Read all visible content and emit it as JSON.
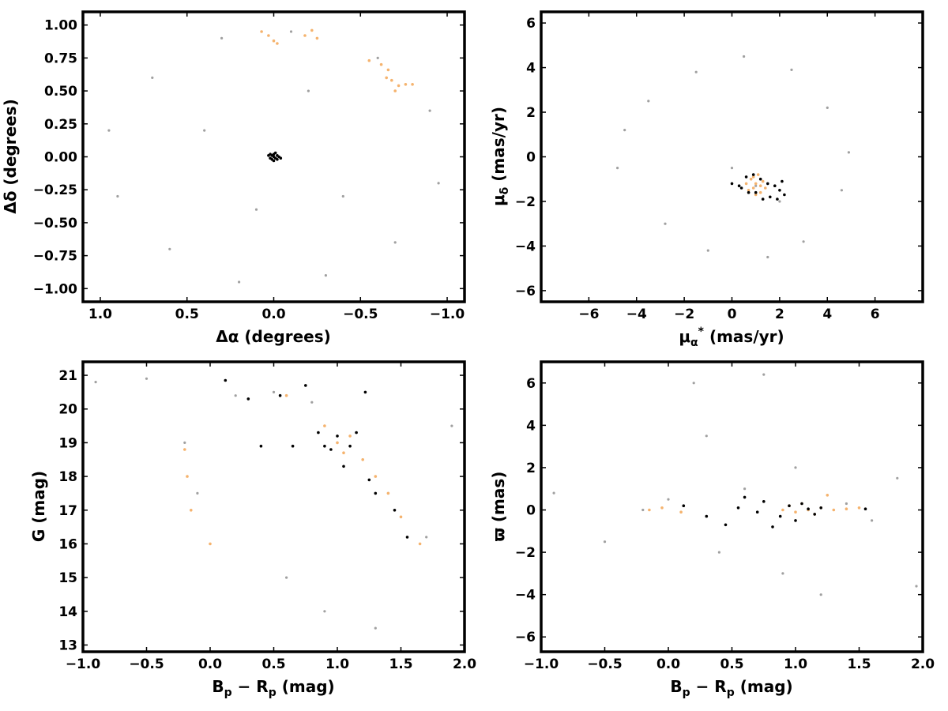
{
  "colors": {
    "field": "#a0a0a0",
    "candidates": "#f5b36e",
    "members": "#000000"
  },
  "chart_data": [
    {
      "id": "sky",
      "type": "scatter",
      "xlabel": "Δα (degrees)",
      "ylabel": "Δδ (degrees)",
      "xlim": [
        1.1,
        -1.1
      ],
      "ylim": [
        -1.1,
        1.1
      ],
      "x_ticks": [
        1.0,
        0.5,
        0.0,
        -0.5,
        -1.0
      ],
      "x_tick_labels": [
        "1.0",
        "0.5",
        "0.0",
        "−0.5",
        "−1.0"
      ],
      "y_ticks": [
        1.0,
        0.75,
        0.5,
        0.25,
        0.0,
        -0.25,
        -0.5,
        -0.75,
        -1.0
      ],
      "y_tick_labels": [
        "1.00",
        "0.75",
        "0.50",
        "0.25",
        "0.00",
        "−0.25",
        "−0.50",
        "−0.75",
        "−1.00"
      ],
      "grid": false,
      "series": [
        {
          "values": [
            [
              0.95,
              0.2
            ],
            [
              0.9,
              -0.3
            ],
            [
              0.7,
              0.6
            ],
            [
              0.6,
              -0.7
            ],
            [
              0.3,
              0.9
            ],
            [
              0.2,
              -0.95
            ],
            [
              -0.1,
              0.95
            ],
            [
              -0.3,
              -0.9
            ],
            [
              -0.6,
              0.75
            ],
            [
              -0.7,
              -0.65
            ],
            [
              -0.9,
              0.35
            ],
            [
              -0.95,
              -0.2
            ],
            [
              0.4,
              0.2
            ],
            [
              -0.4,
              -0.3
            ],
            [
              0.1,
              -0.4
            ],
            [
              -0.2,
              0.5
            ]
          ]
        },
        {
          "values": [
            [
              0.0,
              0.88
            ],
            [
              0.03,
              0.92
            ],
            [
              -0.02,
              0.86
            ],
            [
              0.07,
              0.95
            ],
            [
              -0.18,
              0.92
            ],
            [
              -0.22,
              0.96
            ],
            [
              -0.25,
              0.9
            ],
            [
              -0.55,
              0.73
            ],
            [
              -0.62,
              0.7
            ],
            [
              -0.66,
              0.66
            ],
            [
              -0.68,
              0.58
            ],
            [
              -0.72,
              0.54
            ],
            [
              -0.76,
              0.55
            ],
            [
              -0.8,
              0.55
            ],
            [
              -0.7,
              0.5
            ],
            [
              -0.65,
              0.6
            ]
          ]
        },
        {
          "values": [
            [
              0.0,
              0.0
            ],
            [
              0.01,
              0.01
            ],
            [
              -0.01,
              -0.01
            ],
            [
              0.02,
              -0.01
            ],
            [
              -0.02,
              0.01
            ],
            [
              0.0,
              0.02
            ],
            [
              0.01,
              -0.02
            ],
            [
              -0.03,
              0.0
            ],
            [
              0.03,
              0.01
            ],
            [
              0.0,
              -0.03
            ],
            [
              -0.01,
              0.03
            ],
            [
              0.02,
              0.02
            ],
            [
              -0.02,
              -0.02
            ],
            [
              -0.04,
              -0.01
            ]
          ]
        }
      ]
    },
    {
      "id": "pm",
      "type": "scatter",
      "xlabel": "μα* (mas/yr)",
      "ylabel": "μδ (mas/yr)",
      "xlim": [
        -8,
        8
      ],
      "ylim": [
        -6.5,
        6.5
      ],
      "x_ticks": [
        -6,
        -4,
        -2,
        0,
        2,
        4,
        6
      ],
      "x_tick_labels": [
        "−6",
        "−4",
        "−2",
        "0",
        "2",
        "4",
        "6"
      ],
      "y_ticks": [
        6,
        4,
        2,
        0,
        -2,
        -4,
        -6
      ],
      "y_tick_labels": [
        "6",
        "4",
        "2",
        "0",
        "−2",
        "−4",
        "−6"
      ],
      "grid": false,
      "series": [
        {
          "values": [
            [
              -4.8,
              -0.5
            ],
            [
              -4.5,
              1.2
            ],
            [
              -3.5,
              2.5
            ],
            [
              -2.8,
              -3.0
            ],
            [
              -1.5,
              3.8
            ],
            [
              -1.0,
              -4.2
            ],
            [
              0.5,
              4.5
            ],
            [
              1.5,
              -4.5
            ],
            [
              2.5,
              3.9
            ],
            [
              3.0,
              -3.8
            ],
            [
              4.0,
              2.2
            ],
            [
              4.6,
              -1.5
            ],
            [
              4.9,
              0.2
            ],
            [
              1.0,
              -1.3
            ],
            [
              0.0,
              -0.5
            ],
            [
              2.0,
              -2.0
            ]
          ]
        },
        {
          "values": [
            [
              0.6,
              -1.2
            ],
            [
              0.8,
              -1.0
            ],
            [
              0.9,
              -1.4
            ],
            [
              1.0,
              -1.2
            ],
            [
              1.1,
              -0.8
            ],
            [
              1.2,
              -1.6
            ],
            [
              1.3,
              -1.1
            ],
            [
              0.7,
              -1.5
            ],
            [
              1.0,
              -1.7
            ],
            [
              1.2,
              -1.3
            ],
            [
              0.9,
              -0.9
            ],
            [
              1.4,
              -1.4
            ]
          ]
        },
        {
          "values": [
            [
              0.0,
              -1.2
            ],
            [
              0.3,
              -1.3
            ],
            [
              0.6,
              -0.9
            ],
            [
              0.9,
              -0.8
            ],
            [
              1.2,
              -1.0
            ],
            [
              1.5,
              -1.2
            ],
            [
              1.8,
              -1.3
            ],
            [
              2.0,
              -1.5
            ],
            [
              2.2,
              -1.7
            ],
            [
              1.9,
              -1.9
            ],
            [
              1.6,
              -1.8
            ],
            [
              1.3,
              -1.9
            ],
            [
              1.0,
              -1.6
            ],
            [
              0.7,
              -1.6
            ],
            [
              0.4,
              -1.4
            ],
            [
              2.1,
              -1.1
            ]
          ]
        }
      ]
    },
    {
      "id": "cmd",
      "type": "scatter",
      "xlabel": "Bp − Rp (mag)",
      "ylabel": "G (mag)",
      "xlim": [
        -1.0,
        2.0
      ],
      "ylim": [
        12.8,
        21.4
      ],
      "x_ticks": [
        -1.0,
        -0.5,
        0.0,
        0.5,
        1.0,
        1.5,
        2.0
      ],
      "x_tick_labels": [
        "−1.0",
        "−0.5",
        "0.0",
        "0.5",
        "1.0",
        "1.5",
        "2.0"
      ],
      "y_ticks": [
        21,
        20,
        19,
        18,
        17,
        16,
        15,
        14,
        13
      ],
      "y_tick_labels": [
        "21",
        "20",
        "19",
        "18",
        "17",
        "16",
        "15",
        "14",
        "13"
      ],
      "grid": false,
      "series": [
        {
          "values": [
            [
              -0.9,
              20.8
            ],
            [
              -0.5,
              20.9
            ],
            [
              -0.2,
              19.0
            ],
            [
              -0.1,
              17.5
            ],
            [
              0.2,
              20.4
            ],
            [
              0.5,
              20.5
            ],
            [
              0.8,
              20.2
            ],
            [
              1.0,
              19.0
            ],
            [
              1.2,
              18.5
            ],
            [
              1.4,
              17.5
            ],
            [
              1.5,
              16.8
            ],
            [
              1.7,
              16.2
            ],
            [
              1.9,
              19.5
            ],
            [
              0.6,
              15.0
            ],
            [
              0.9,
              14.0
            ],
            [
              1.3,
              13.5
            ]
          ]
        },
        {
          "values": [
            [
              -0.2,
              18.8
            ],
            [
              -0.18,
              18.0
            ],
            [
              -0.15,
              17.0
            ],
            [
              0.0,
              16.0
            ],
            [
              0.9,
              19.5
            ],
            [
              1.0,
              19.0
            ],
            [
              1.05,
              18.7
            ],
            [
              1.1,
              19.2
            ],
            [
              1.2,
              18.5
            ],
            [
              1.3,
              18.0
            ],
            [
              1.4,
              17.5
            ],
            [
              1.5,
              16.8
            ],
            [
              0.6,
              20.4
            ],
            [
              1.65,
              16.0
            ]
          ]
        },
        {
          "values": [
            [
              0.12,
              20.85
            ],
            [
              0.3,
              20.3
            ],
            [
              0.55,
              20.4
            ],
            [
              0.75,
              20.7
            ],
            [
              0.85,
              19.3
            ],
            [
              0.9,
              18.9
            ],
            [
              0.95,
              18.8
            ],
            [
              1.0,
              19.2
            ],
            [
              1.05,
              18.3
            ],
            [
              1.1,
              18.9
            ],
            [
              1.15,
              19.3
            ],
            [
              1.22,
              20.5
            ],
            [
              1.25,
              17.9
            ],
            [
              1.3,
              17.5
            ],
            [
              1.45,
              17.0
            ],
            [
              1.55,
              16.2
            ],
            [
              0.4,
              18.9
            ],
            [
              0.65,
              18.9
            ]
          ]
        }
      ]
    },
    {
      "id": "parallax",
      "type": "scatter",
      "xlabel": "Bp − Rp (mag)",
      "ylabel": "ϖ (mas)",
      "xlim": [
        -1.0,
        2.0
      ],
      "ylim": [
        -6.7,
        7.0
      ],
      "x_ticks": [
        -1.0,
        -0.5,
        0.0,
        0.5,
        1.0,
        1.5,
        2.0
      ],
      "x_tick_labels": [
        "−1.0",
        "−0.5",
        "0.0",
        "0.5",
        "1.0",
        "1.5",
        "2.0"
      ],
      "y_ticks": [
        6,
        4,
        2,
        0,
        -2,
        -4,
        -6
      ],
      "y_tick_labels": [
        "6",
        "4",
        "2",
        "0",
        "−2",
        "−4",
        "−6"
      ],
      "grid": false,
      "series": [
        {
          "values": [
            [
              -0.9,
              0.8
            ],
            [
              -0.5,
              -1.5
            ],
            [
              -0.2,
              0.0
            ],
            [
              0.0,
              0.5
            ],
            [
              0.2,
              6.0
            ],
            [
              0.4,
              -2.0
            ],
            [
              0.6,
              1.0
            ],
            [
              0.75,
              6.4
            ],
            [
              0.9,
              -3.0
            ],
            [
              1.0,
              2.0
            ],
            [
              1.2,
              -4.0
            ],
            [
              1.4,
              0.3
            ],
            [
              1.6,
              -0.5
            ],
            [
              1.8,
              1.5
            ],
            [
              1.95,
              -3.6
            ],
            [
              0.3,
              3.5
            ]
          ]
        },
        {
          "values": [
            [
              -0.15,
              0.0
            ],
            [
              -0.05,
              0.1
            ],
            [
              0.1,
              -0.1
            ],
            [
              0.9,
              0.0
            ],
            [
              0.95,
              0.2
            ],
            [
              1.0,
              -0.1
            ],
            [
              1.05,
              0.3
            ],
            [
              1.1,
              0.0
            ],
            [
              1.15,
              -0.2
            ],
            [
              1.2,
              0.1
            ],
            [
              1.3,
              0.0
            ],
            [
              1.4,
              0.05
            ],
            [
              1.5,
              0.1
            ],
            [
              1.25,
              0.7
            ]
          ]
        },
        {
          "values": [
            [
              0.12,
              0.2
            ],
            [
              0.3,
              -0.3
            ],
            [
              0.45,
              -0.7
            ],
            [
              0.55,
              0.1
            ],
            [
              0.6,
              0.6
            ],
            [
              0.7,
              -0.1
            ],
            [
              0.75,
              0.4
            ],
            [
              0.82,
              -0.8
            ],
            [
              0.88,
              -0.3
            ],
            [
              0.95,
              0.2
            ],
            [
              1.0,
              -0.5
            ],
            [
              1.05,
              0.3
            ],
            [
              1.1,
              0.05
            ],
            [
              1.15,
              -0.2
            ],
            [
              1.2,
              0.1
            ],
            [
              1.55,
              0.05
            ]
          ]
        }
      ]
    }
  ]
}
